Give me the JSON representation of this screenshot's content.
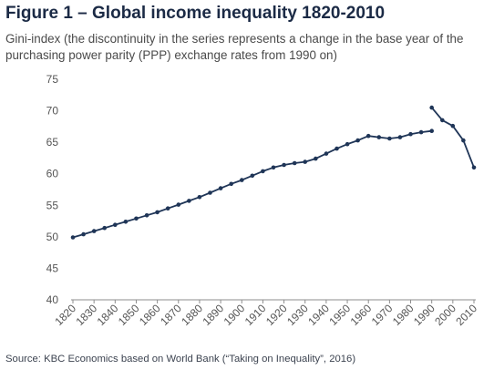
{
  "figure": {
    "title": "Figure 1 – Global income inequality 1820-2010",
    "subtitle": "Gini-index (the discontinuity in  the series represents a change in the base year of the purchasing power parity (PPP) exchange rates from 1990 on)",
    "source": "Source: KBC Economics based on World Bank (“Taking on Inequality”, 2016)"
  },
  "colors": {
    "series": "#1f3557",
    "axis": "#8c8c8c",
    "title": "#1b2a45"
  },
  "chart_data": {
    "type": "line",
    "title": "Figure 1 – Global income inequality 1820-2010",
    "xlabel": "",
    "ylabel": "",
    "xlim": [
      1820,
      2010
    ],
    "ylim": [
      40,
      75
    ],
    "x_ticks": [
      1820,
      1830,
      1840,
      1850,
      1860,
      1870,
      1880,
      1890,
      1900,
      1910,
      1920,
      1930,
      1940,
      1950,
      1960,
      1970,
      1980,
      1990,
      2000,
      2010
    ],
    "y_ticks": [
      40,
      45,
      50,
      55,
      60,
      65,
      70,
      75
    ],
    "grid": false,
    "legend": "none",
    "series": [
      {
        "points": [
          [
            1820,
            49.9
          ],
          [
            1825,
            50.4
          ],
          [
            1830,
            50.9
          ],
          [
            1835,
            51.4
          ],
          [
            1840,
            51.9
          ],
          [
            1845,
            52.4
          ],
          [
            1850,
            52.9
          ],
          [
            1855,
            53.4
          ],
          [
            1860,
            53.9
          ],
          [
            1865,
            54.5
          ],
          [
            1870,
            55.1
          ],
          [
            1875,
            55.7
          ],
          [
            1880,
            56.3
          ],
          [
            1885,
            57.0
          ],
          [
            1890,
            57.7
          ],
          [
            1895,
            58.4
          ],
          [
            1900,
            59.0
          ],
          [
            1905,
            59.7
          ],
          [
            1910,
            60.4
          ],
          [
            1915,
            61.0
          ],
          [
            1920,
            61.4
          ],
          [
            1925,
            61.7
          ],
          [
            1930,
            61.9
          ],
          [
            1935,
            62.4
          ],
          [
            1940,
            63.2
          ],
          [
            1945,
            64.0
          ],
          [
            1950,
            64.7
          ],
          [
            1955,
            65.3
          ],
          [
            1960,
            66.0
          ],
          [
            1965,
            65.8
          ],
          [
            1970,
            65.6
          ],
          [
            1975,
            65.8
          ],
          [
            1980,
            66.3
          ],
          [
            1985,
            66.6
          ],
          [
            1990,
            66.8
          ]
        ]
      },
      {
        "points": [
          [
            1990,
            70.5
          ],
          [
            1995,
            68.5
          ],
          [
            2000,
            67.6
          ],
          [
            2005,
            65.3
          ],
          [
            2010,
            61.0
          ]
        ]
      }
    ]
  }
}
